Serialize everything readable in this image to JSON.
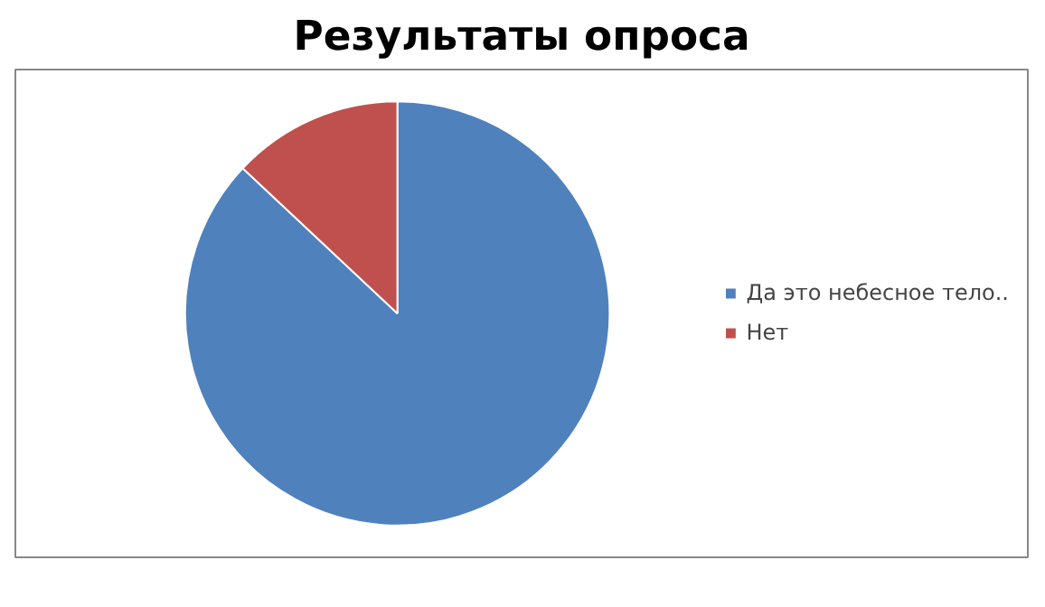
{
  "chart_data": {
    "type": "pie",
    "title": "Результаты опроса",
    "categories": [
      "Да это небесное тело..",
      "Нет"
    ],
    "values": [
      87,
      13
    ],
    "colors": [
      "#4f81bd",
      "#c0504d"
    ],
    "legend": "right"
  }
}
